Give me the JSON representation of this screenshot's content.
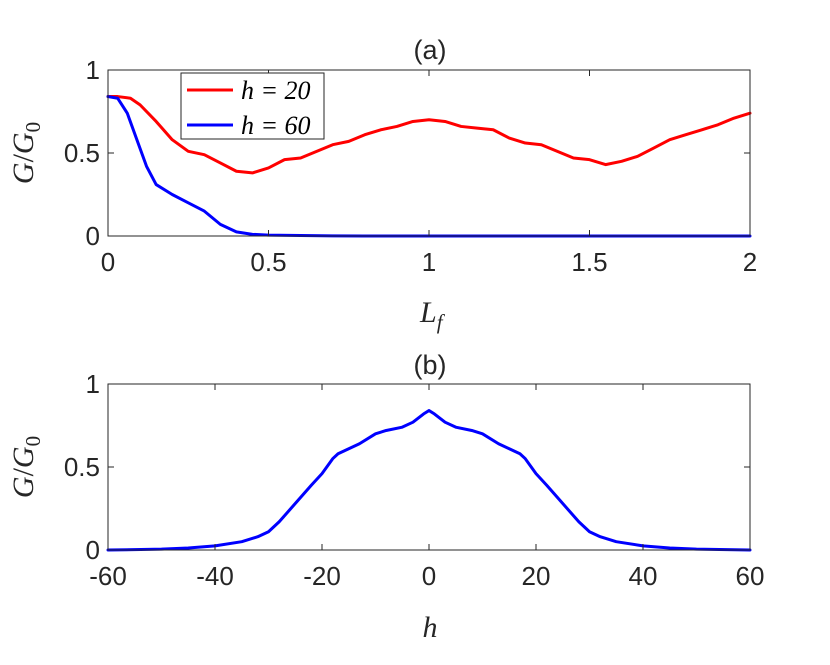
{
  "chart_data": [
    {
      "type": "line",
      "panel": "a",
      "title": "(a)",
      "xlabel": "L_f",
      "ylabel": "G/G_0",
      "xlim": [
        0,
        2
      ],
      "ylim": [
        0,
        1
      ],
      "xticks": [
        "0",
        "0.5",
        "1",
        "1.5",
        "2"
      ],
      "yticks": [
        "0",
        "0.5",
        "1"
      ],
      "grid": false,
      "legend_position": "top-left",
      "series": [
        {
          "name": "h = 20",
          "color": "#ff0000",
          "points": [
            [
              0,
              0.84
            ],
            [
              0.03,
              0.84
            ],
            [
              0.07,
              0.83
            ],
            [
              0.1,
              0.79
            ],
            [
              0.15,
              0.69
            ],
            [
              0.2,
              0.58
            ],
            [
              0.25,
              0.51
            ],
            [
              0.3,
              0.49
            ],
            [
              0.35,
              0.44
            ],
            [
              0.4,
              0.39
            ],
            [
              0.45,
              0.38
            ],
            [
              0.5,
              0.41
            ],
            [
              0.55,
              0.46
            ],
            [
              0.6,
              0.47
            ],
            [
              0.65,
              0.51
            ],
            [
              0.7,
              0.55
            ],
            [
              0.75,
              0.57
            ],
            [
              0.8,
              0.61
            ],
            [
              0.85,
              0.64
            ],
            [
              0.9,
              0.66
            ],
            [
              0.95,
              0.69
            ],
            [
              1.0,
              0.7
            ],
            [
              1.05,
              0.69
            ],
            [
              1.1,
              0.66
            ],
            [
              1.15,
              0.65
            ],
            [
              1.2,
              0.64
            ],
            [
              1.25,
              0.59
            ],
            [
              1.3,
              0.56
            ],
            [
              1.35,
              0.55
            ],
            [
              1.4,
              0.51
            ],
            [
              1.45,
              0.47
            ],
            [
              1.5,
              0.46
            ],
            [
              1.55,
              0.43
            ],
            [
              1.6,
              0.45
            ],
            [
              1.65,
              0.48
            ],
            [
              1.7,
              0.53
            ],
            [
              1.75,
              0.58
            ],
            [
              1.8,
              0.61
            ],
            [
              1.85,
              0.64
            ],
            [
              1.9,
              0.67
            ],
            [
              1.95,
              0.71
            ],
            [
              2.0,
              0.74
            ]
          ]
        },
        {
          "name": "h = 60",
          "color": "#0000ff",
          "points": [
            [
              0,
              0.84
            ],
            [
              0.03,
              0.83
            ],
            [
              0.06,
              0.74
            ],
            [
              0.09,
              0.58
            ],
            [
              0.12,
              0.42
            ],
            [
              0.15,
              0.31
            ],
            [
              0.2,
              0.25
            ],
            [
              0.25,
              0.2
            ],
            [
              0.3,
              0.15
            ],
            [
              0.35,
              0.07
            ],
            [
              0.4,
              0.025
            ],
            [
              0.45,
              0.01
            ],
            [
              0.5,
              0.005
            ],
            [
              0.6,
              0.003
            ],
            [
              0.7,
              0.001
            ],
            [
              0.8,
              0
            ],
            [
              1.0,
              0
            ],
            [
              1.5,
              0
            ],
            [
              2.0,
              0
            ]
          ]
        }
      ]
    },
    {
      "type": "line",
      "panel": "b",
      "title": "(b)",
      "xlabel": "h",
      "ylabel": "G/G_0",
      "xlim": [
        -60,
        60
      ],
      "ylim": [
        0,
        1
      ],
      "xticks": [
        "-60",
        "-40",
        "-20",
        "0",
        "20",
        "40",
        "60"
      ],
      "yticks": [
        "0",
        "0.5",
        "1"
      ],
      "grid": false,
      "series": [
        {
          "color": "#0000ff",
          "points": [
            [
              -60,
              0
            ],
            [
              -50,
              0.005
            ],
            [
              -45,
              0.012
            ],
            [
              -40,
              0.025
            ],
            [
              -35,
              0.05
            ],
            [
              -32,
              0.08
            ],
            [
              -30,
              0.11
            ],
            [
              -28,
              0.17
            ],
            [
              -25,
              0.28
            ],
            [
              -22,
              0.39
            ],
            [
              -20,
              0.46
            ],
            [
              -18,
              0.55
            ],
            [
              -17,
              0.58
            ],
            [
              -15,
              0.61
            ],
            [
              -13,
              0.64
            ],
            [
              -10,
              0.7
            ],
            [
              -8,
              0.72
            ],
            [
              -5,
              0.74
            ],
            [
              -3,
              0.77
            ],
            [
              -1,
              0.82
            ],
            [
              0,
              0.84
            ],
            [
              1,
              0.82
            ],
            [
              3,
              0.77
            ],
            [
              5,
              0.74
            ],
            [
              8,
              0.72
            ],
            [
              10,
              0.7
            ],
            [
              13,
              0.64
            ],
            [
              15,
              0.61
            ],
            [
              17,
              0.58
            ],
            [
              18,
              0.55
            ],
            [
              20,
              0.46
            ],
            [
              22,
              0.39
            ],
            [
              25,
              0.28
            ],
            [
              28,
              0.17
            ],
            [
              30,
              0.11
            ],
            [
              32,
              0.08
            ],
            [
              35,
              0.05
            ],
            [
              40,
              0.025
            ],
            [
              45,
              0.012
            ],
            [
              50,
              0.005
            ],
            [
              60,
              0
            ]
          ]
        }
      ]
    }
  ]
}
